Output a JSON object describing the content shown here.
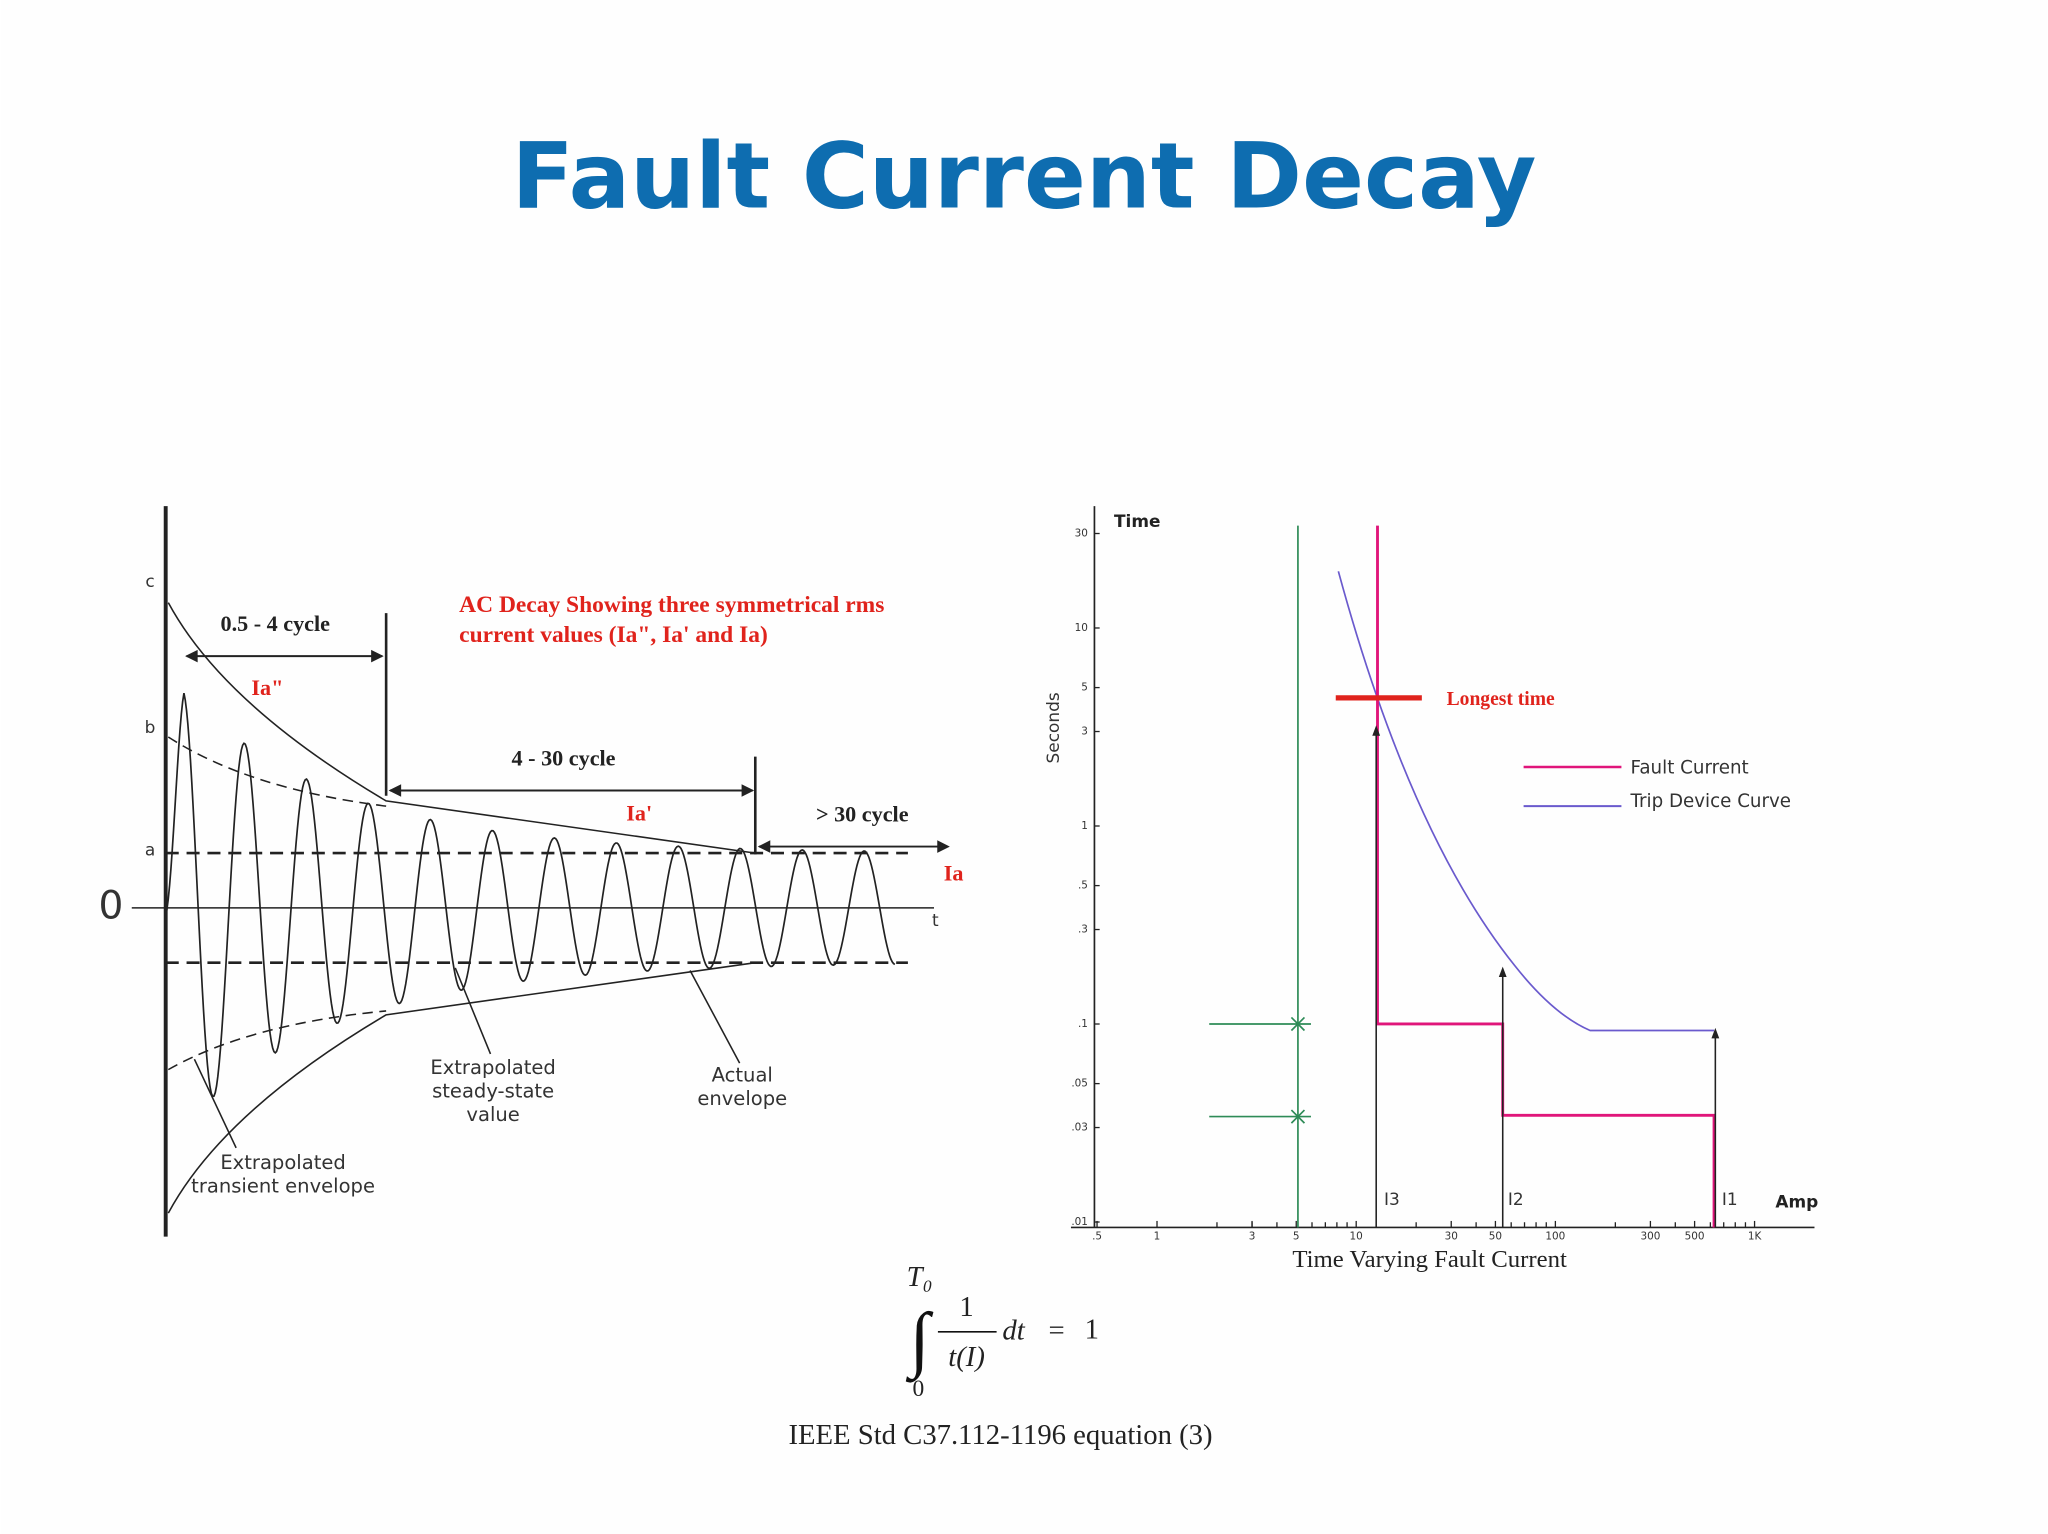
{
  "title": "Fault Current Decay",
  "left_diagram": {
    "axis_labels": [
      "c",
      "b",
      "a"
    ],
    "zero": "0",
    "time_axis": "t",
    "ranges": [
      "0.5 - 4 cycle",
      "4 - 30 cycle",
      "> 30 cycle"
    ],
    "currents": [
      "Ia\"",
      "Ia'",
      "Ia"
    ],
    "caption": [
      "AC Decay Showing three symmetrical rms",
      "current values (Ia\", Ia' and Ia)"
    ],
    "callouts": {
      "steady_state": [
        "Extrapolated",
        "steady-state",
        "value"
      ],
      "actual": [
        "Actual",
        "envelope"
      ],
      "transient": [
        "Extrapolated",
        "transient envelope"
      ]
    }
  },
  "right_diagram": {
    "y_title": "Time",
    "y_label": "Seconds",
    "y_ticks": [
      "30",
      "10",
      "5",
      "3",
      "1",
      ".5",
      ".3",
      ".1",
      ".05",
      ".03",
      ".01"
    ],
    "x_ticks": [
      ".5",
      "1",
      "3",
      "5",
      "10",
      "30",
      "50",
      "100",
      "300",
      "500",
      "1K"
    ],
    "x_title": "Amp",
    "currents": [
      "I3",
      "I2",
      "I1"
    ],
    "legend": [
      "Fault Current",
      "Trip Device Curve"
    ],
    "annotation": "Longest time",
    "caption": "Time Varying Fault Current"
  },
  "equation": {
    "upper_limit": "T₀",
    "numerator": "1",
    "denominator": "t(I)",
    "differential": "dt",
    "equals": "=",
    "result": "1",
    "lower_limit": "0",
    "source": "IEEE Std C37.112-1196 equation (3)"
  }
}
